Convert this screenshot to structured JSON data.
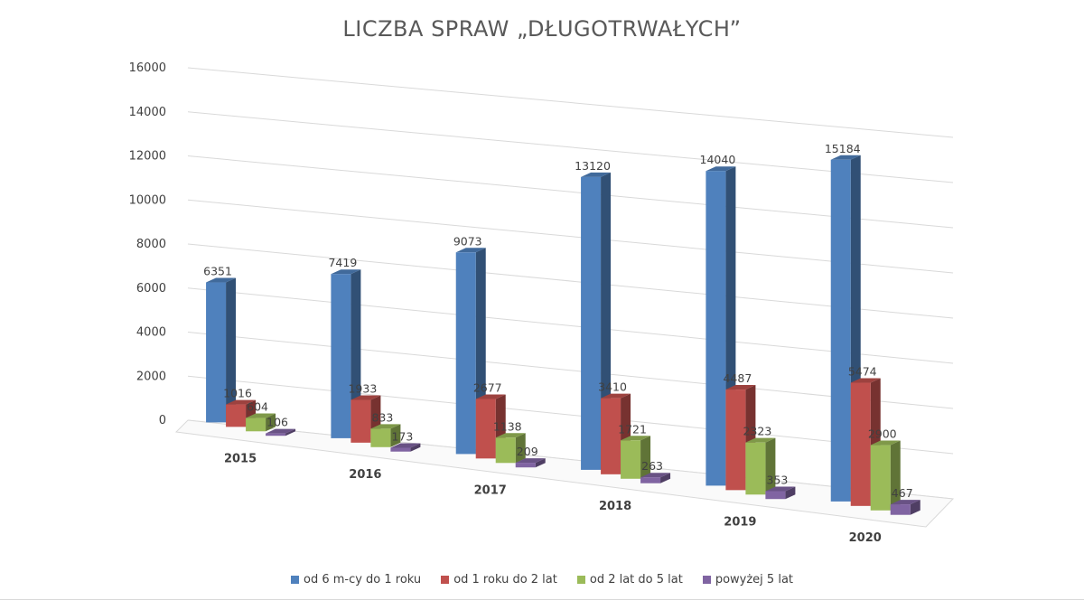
{
  "chart_data": {
    "type": "bar",
    "title": "LICZBA SPRAW „DŁUGOTRWAŁYCH”",
    "categories": [
      "2015",
      "2016",
      "2017",
      "2018",
      "2019",
      "2020"
    ],
    "series": [
      {
        "name": "od 6 m-cy do 1 roku",
        "color": "#4F81BD",
        "values": [
          6351,
          7419,
          9073,
          13120,
          14040,
          15184
        ]
      },
      {
        "name": "od 1 roku do 2 lat",
        "color": "#C0504D",
        "values": [
          1016,
          1933,
          2677,
          3410,
          4487,
          5474
        ]
      },
      {
        "name": "od 2 lat do 5 lat",
        "color": "#9BBB59",
        "values": [
          604,
          833,
          1138,
          1721,
          2323,
          2900
        ]
      },
      {
        "name": "powyżej 5 lat",
        "color": "#8064A2",
        "values": [
          106,
          173,
          209,
          263,
          353,
          467
        ]
      }
    ],
    "y_ticks": [
      "0",
      "2000",
      "4000",
      "6000",
      "8000",
      "10000",
      "12000",
      "14000",
      "16000"
    ],
    "ylim": [
      0,
      16000
    ],
    "grid": true,
    "legend_position": "bottom",
    "style": "3d-clustered-column"
  }
}
